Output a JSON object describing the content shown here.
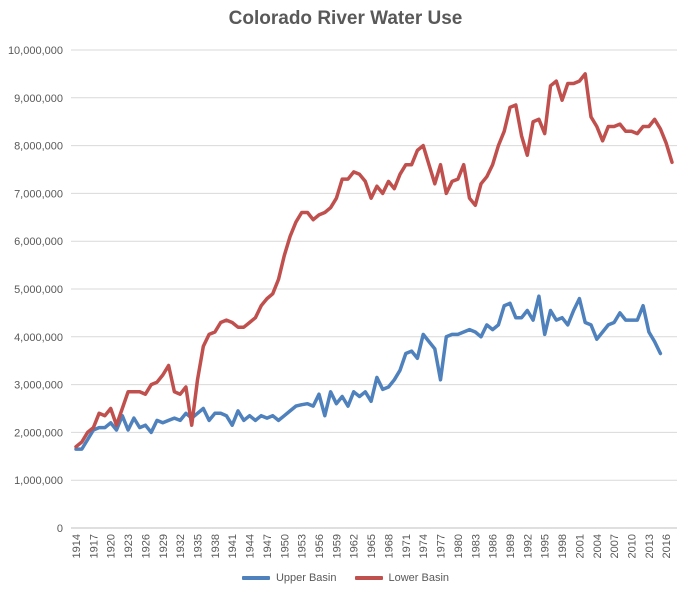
{
  "chart_data": {
    "type": "line",
    "title": "Colorado River Water Use",
    "xlabel": "",
    "ylabel": "",
    "ylim": [
      0,
      10000000
    ],
    "yticks": [
      0,
      1000000,
      2000000,
      3000000,
      4000000,
      5000000,
      6000000,
      7000000,
      8000000,
      9000000,
      10000000
    ],
    "ytick_labels": [
      "0",
      "1,000,000",
      "2,000,000",
      "3,000,000",
      "4,000,000",
      "5,000,000",
      "6,000,000",
      "7,000,000",
      "8,000,000",
      "9,000,000",
      "10,000,000"
    ],
    "xticks": [
      1914,
      1917,
      1920,
      1923,
      1926,
      1929,
      1932,
      1935,
      1938,
      1941,
      1944,
      1947,
      1950,
      1953,
      1956,
      1959,
      1962,
      1965,
      1968,
      1971,
      1974,
      1977,
      1980,
      1983,
      1986,
      1989,
      1992,
      1995,
      1998,
      2001,
      2004,
      2007,
      2010,
      2013,
      2016
    ],
    "x": [
      1914,
      1915,
      1916,
      1917,
      1918,
      1919,
      1920,
      1921,
      1922,
      1923,
      1924,
      1925,
      1926,
      1927,
      1928,
      1929,
      1930,
      1931,
      1932,
      1933,
      1934,
      1935,
      1936,
      1937,
      1938,
      1939,
      1940,
      1941,
      1942,
      1943,
      1944,
      1945,
      1946,
      1947,
      1948,
      1949,
      1950,
      1951,
      1952,
      1953,
      1954,
      1955,
      1956,
      1957,
      1958,
      1959,
      1960,
      1961,
      1962,
      1963,
      1964,
      1965,
      1966,
      1967,
      1968,
      1969,
      1970,
      1971,
      1972,
      1973,
      1974,
      1975,
      1976,
      1977,
      1978,
      1979,
      1980,
      1981,
      1982,
      1983,
      1984,
      1985,
      1986,
      1987,
      1988,
      1989,
      1990,
      1991,
      1992,
      1993,
      1994,
      1995,
      1996,
      1997,
      1998,
      1999,
      2000,
      2001,
      2002,
      2003,
      2004,
      2005,
      2006,
      2007,
      2008,
      2009,
      2010,
      2011,
      2012,
      2013,
      2014,
      2015,
      2016,
      2017
    ],
    "grid": true,
    "legend_position": "bottom",
    "series": [
      {
        "name": "Upper Basin",
        "color": "#4f81bd",
        "values": [
          1650000,
          1650000,
          1850000,
          2050000,
          2100000,
          2100000,
          2200000,
          2050000,
          2350000,
          2050000,
          2300000,
          2100000,
          2150000,
          2000000,
          2250000,
          2200000,
          2250000,
          2300000,
          2250000,
          2400000,
          2300000,
          2400000,
          2500000,
          2250000,
          2400000,
          2400000,
          2350000,
          2150000,
          2450000,
          2250000,
          2350000,
          2250000,
          2350000,
          2300000,
          2350000,
          2250000,
          2350000,
          2450000,
          2550000,
          2580000,
          2600000,
          2550000,
          2800000,
          2350000,
          2850000,
          2600000,
          2750000,
          2550000,
          2850000,
          2750000,
          2850000,
          2650000,
          3150000,
          2900000,
          2950000,
          3100000,
          3300000,
          3650000,
          3700000,
          3550000,
          4050000,
          3900000,
          3750000,
          3100000,
          4000000,
          4050000,
          4050000,
          4100000,
          4150000,
          4100000,
          4000000,
          4250000,
          4150000,
          4250000,
          4650000,
          4700000,
          4400000,
          4400000,
          4550000,
          4350000,
          4850000,
          4050000,
          4550000,
          4350000,
          4400000,
          4250000,
          4550000,
          4800000,
          4300000,
          4250000,
          3950000,
          4100000,
          4250000,
          4300000,
          4500000,
          4350000,
          4350000,
          4350000,
          4650000,
          4100000,
          3900000,
          3650000,
          null,
          null
        ]
      },
      {
        "name": "Lower Basin",
        "color": "#c0504d",
        "values": [
          1700000,
          1800000,
          2000000,
          2100000,
          2400000,
          2350000,
          2500000,
          2150000,
          2500000,
          2850000,
          2850000,
          2850000,
          2800000,
          3000000,
          3050000,
          3200000,
          3400000,
          2850000,
          2800000,
          2950000,
          2150000,
          3100000,
          3800000,
          4050000,
          4100000,
          4300000,
          4350000,
          4300000,
          4200000,
          4200000,
          4300000,
          4400000,
          4650000,
          4800000,
          4900000,
          5200000,
          5700000,
          6100000,
          6400000,
          6600000,
          6600000,
          6450000,
          6550000,
          6600000,
          6700000,
          6900000,
          7300000,
          7300000,
          7450000,
          7400000,
          7250000,
          6900000,
          7150000,
          7000000,
          7250000,
          7100000,
          7400000,
          7600000,
          7600000,
          7900000,
          8000000,
          7600000,
          7200000,
          7600000,
          7000000,
          7250000,
          7300000,
          7600000,
          6900000,
          6750000,
          7200000,
          7350000,
          7600000,
          8000000,
          8300000,
          8800000,
          8850000,
          8200000,
          7800000,
          8500000,
          8550000,
          8250000,
          9250000,
          9350000,
          8950000,
          9300000,
          9300000,
          9350000,
          9500000,
          8600000,
          8400000,
          8100000,
          8400000,
          8400000,
          8450000,
          8300000,
          8300000,
          8250000,
          8400000,
          8400000,
          8550000,
          8350000,
          8050000,
          7650000
        ]
      }
    ]
  }
}
